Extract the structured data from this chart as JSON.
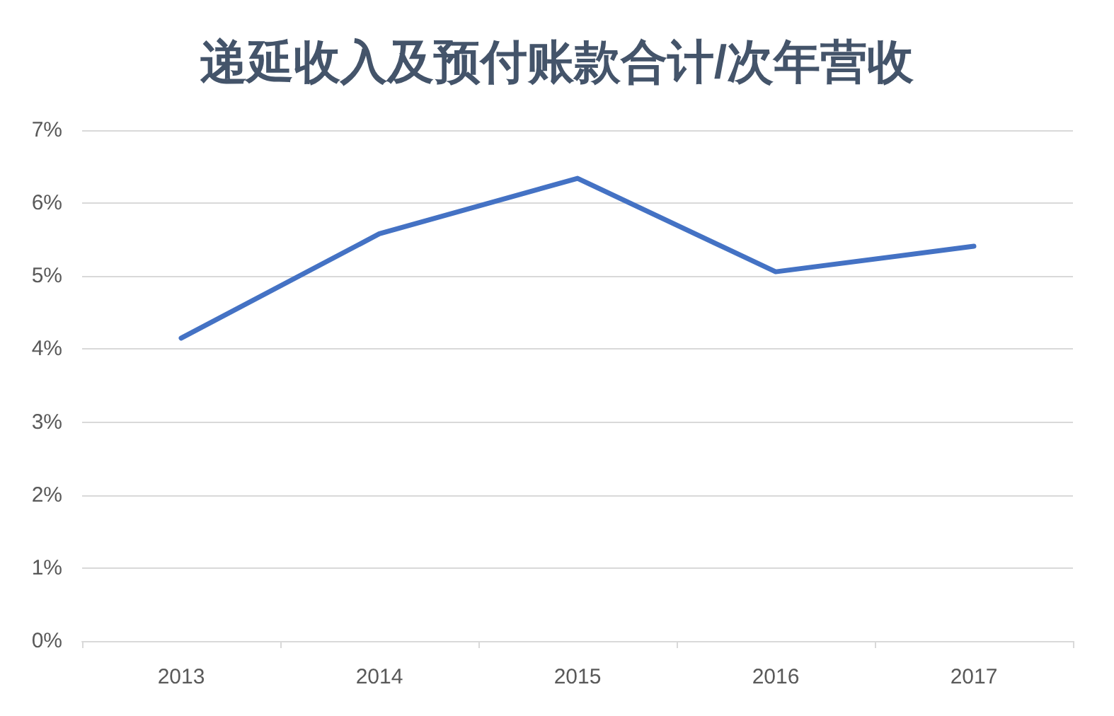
{
  "chart_data": {
    "type": "line",
    "title": "递延收入及预付账款合计/次年营收",
    "categories": [
      "2013",
      "2014",
      "2015",
      "2016",
      "2017"
    ],
    "series": [
      {
        "color": "#4472c4",
        "values": [
          4.15,
          5.58,
          6.34,
          5.06,
          5.41
        ]
      }
    ],
    "ylim": [
      0,
      7
    ],
    "yticks": [
      {
        "value": 0,
        "label": "0%"
      },
      {
        "value": 1,
        "label": "1%"
      },
      {
        "value": 2,
        "label": "2%"
      },
      {
        "value": 3,
        "label": "3%"
      },
      {
        "value": 4,
        "label": "4%"
      },
      {
        "value": 5,
        "label": "5%"
      },
      {
        "value": 6,
        "label": "6%"
      },
      {
        "value": 7,
        "label": "7%"
      }
    ],
    "grid": "y",
    "marker": "none",
    "line_style": "solid"
  }
}
